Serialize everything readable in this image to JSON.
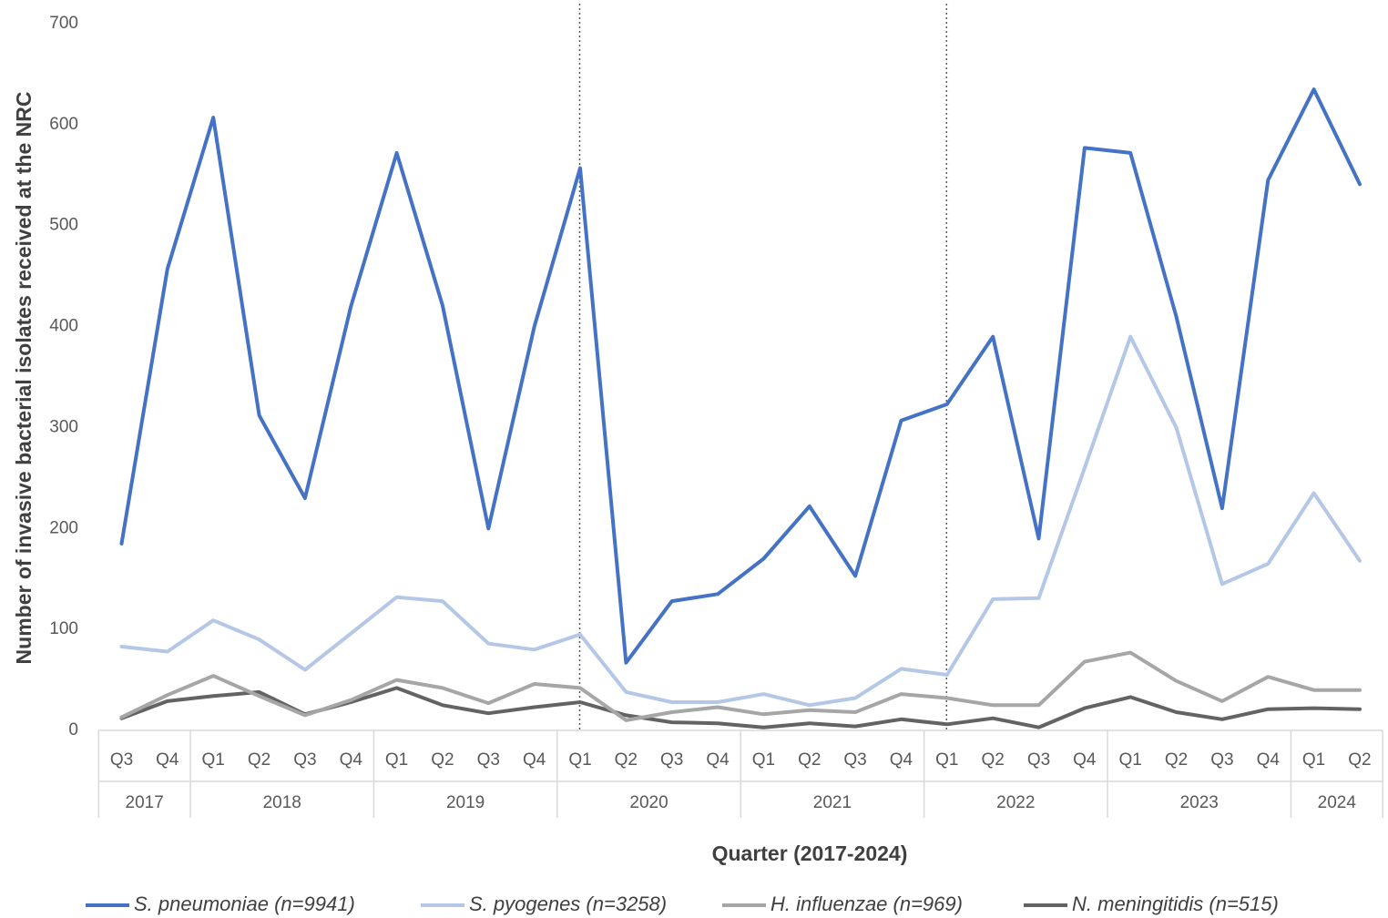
{
  "chart_data": {
    "type": "line",
    "title": "",
    "xlabel": "Quarter (2017-2024)",
    "ylabel": "Number of invasive bacterial isolates received at the NRC",
    "ylim": [
      0,
      700
    ],
    "yticks": [
      0,
      100,
      200,
      300,
      400,
      500,
      600,
      700
    ],
    "grid": false,
    "legend_position": "bottom",
    "categories": [
      "Q3",
      "Q4",
      "Q1",
      "Q2",
      "Q3",
      "Q4",
      "Q1",
      "Q2",
      "Q3",
      "Q4",
      "Q1",
      "Q2",
      "Q3",
      "Q4",
      "Q1",
      "Q2",
      "Q3",
      "Q4",
      "Q1",
      "Q2",
      "Q3",
      "Q4",
      "Q1",
      "Q2",
      "Q3",
      "Q4",
      "Q1",
      "Q2"
    ],
    "year_groups": [
      {
        "label": "2017",
        "count": 2
      },
      {
        "label": "2018",
        "count": 4
      },
      {
        "label": "2019",
        "count": 4
      },
      {
        "label": "2020",
        "count": 4
      },
      {
        "label": "2021",
        "count": 4
      },
      {
        "label": "2022",
        "count": 4
      },
      {
        "label": "2023",
        "count": 4
      },
      {
        "label": "2024",
        "count": 2
      }
    ],
    "vertical_reference_lines": [
      {
        "after_category_index": 10
      },
      {
        "after_category_index": 18
      }
    ],
    "series": [
      {
        "name": "S. pneumoniae (n=9941)",
        "color": "#4472c4",
        "values": [
          185,
          457,
          607,
          312,
          230,
          420,
          572,
          421,
          200,
          400,
          557,
          67,
          128,
          135,
          170,
          222,
          153,
          307,
          323,
          390,
          190,
          577,
          572,
          410,
          220,
          545,
          635,
          541
        ]
      },
      {
        "name": "S. pyogenes (n=3258)",
        "color": "#b4c7e7",
        "values": [
          83,
          78,
          109,
          90,
          60,
          96,
          132,
          128,
          86,
          80,
          95,
          38,
          28,
          28,
          36,
          25,
          32,
          61,
          55,
          130,
          131,
          260,
          390,
          300,
          145,
          165,
          235,
          168
        ]
      },
      {
        "name": "H. influenzae (n=969)",
        "color": "#a6a6a6",
        "values": [
          13,
          35,
          54,
          34,
          15,
          30,
          50,
          42,
          27,
          46,
          42,
          10,
          18,
          23,
          16,
          20,
          18,
          36,
          32,
          25,
          25,
          68,
          77,
          49,
          29,
          53,
          40,
          40
        ]
      },
      {
        "name": "N. meningitidis (n=515)",
        "color": "#636363",
        "values": [
          12,
          29,
          34,
          38,
          16,
          28,
          42,
          25,
          17,
          23,
          28,
          15,
          8,
          7,
          3,
          7,
          4,
          11,
          6,
          12,
          3,
          22,
          33,
          18,
          11,
          21,
          22,
          21
        ]
      }
    ]
  }
}
